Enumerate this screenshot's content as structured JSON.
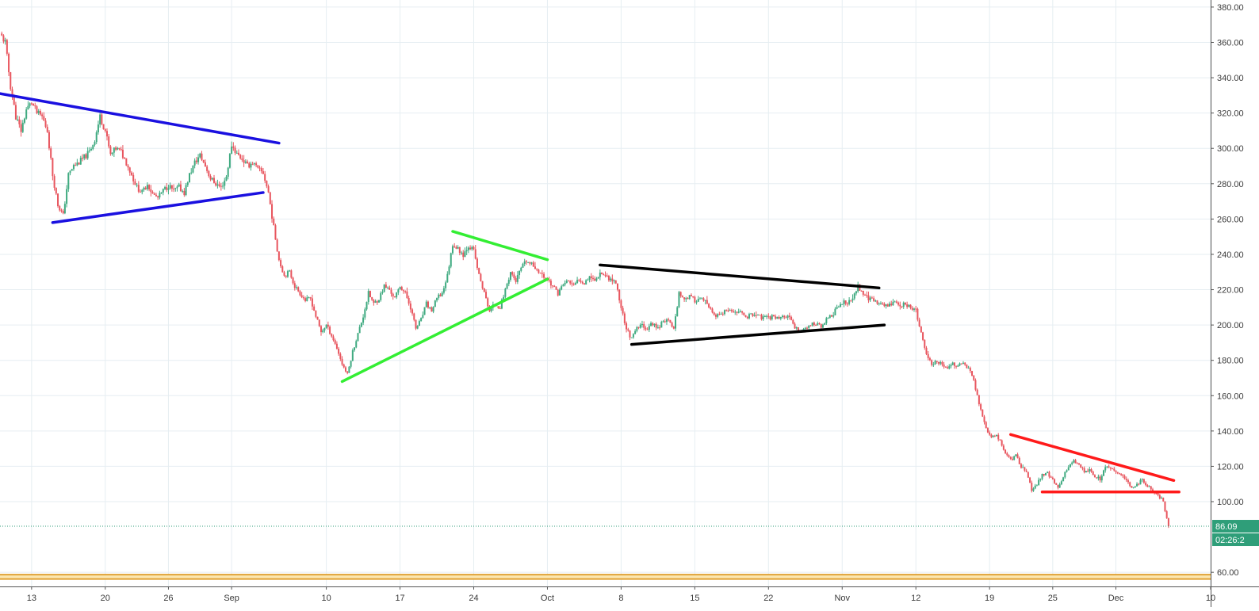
{
  "chart_data": {
    "type": "candlestick",
    "ylim": [
      52,
      384
    ],
    "y_ticks": [
      60,
      100,
      120,
      140,
      160,
      180,
      200,
      220,
      240,
      260,
      280,
      300,
      320,
      340,
      360,
      380
    ],
    "y_tick_labels": [
      "60.00",
      "100.00",
      "120.00",
      "140.00",
      "160.00",
      "180.00",
      "200.00",
      "220.00",
      "240.00",
      "260.00",
      "280.00",
      "300.00",
      "320.00",
      "340.00",
      "360.00",
      "380.00"
    ],
    "x_tick_labels": [
      "13",
      "20",
      "26",
      "Sep",
      "10",
      "17",
      "24",
      "Oct",
      "8",
      "15",
      "22",
      "Nov",
      "12",
      "19",
      "25",
      "Dec",
      "10"
    ],
    "x_tick_days": [
      0,
      7,
      13,
      19,
      28,
      35,
      42,
      49,
      56,
      63,
      70,
      77,
      84,
      91,
      97,
      103,
      112
    ],
    "x_day_range": [
      -3,
      112
    ],
    "price_path": [
      [
        -3,
        365
      ],
      [
        -2.5,
        360
      ],
      [
        -2,
        335
      ],
      [
        -1.5,
        318
      ],
      [
        -1,
        310
      ],
      [
        -0.5,
        322
      ],
      [
        0,
        326
      ],
      [
        0.5,
        320
      ],
      [
        1,
        318
      ],
      [
        1.5,
        310
      ],
      [
        2,
        285
      ],
      [
        2.5,
        268
      ],
      [
        3,
        262
      ],
      [
        3.5,
        285
      ],
      [
        4,
        290
      ],
      [
        4.5,
        292
      ],
      [
        5,
        295
      ],
      [
        5.5,
        298
      ],
      [
        6,
        305
      ],
      [
        6.5,
        318
      ],
      [
        7,
        310
      ],
      [
        7.5,
        296
      ],
      [
        8,
        300
      ],
      [
        8.5,
        298
      ],
      [
        9,
        292
      ],
      [
        9.5,
        285
      ],
      [
        10,
        278
      ],
      [
        10.5,
        275
      ],
      [
        11,
        280
      ],
      [
        11.5,
        274
      ],
      [
        12,
        272
      ],
      [
        12.5,
        276
      ],
      [
        13,
        279
      ],
      [
        13.5,
        276
      ],
      [
        14,
        278
      ],
      [
        14.5,
        275
      ],
      [
        15,
        285
      ],
      [
        15.5,
        292
      ],
      [
        16,
        296
      ],
      [
        16.5,
        290
      ],
      [
        17,
        283
      ],
      [
        17.5,
        280
      ],
      [
        18,
        278
      ],
      [
        18.5,
        284
      ],
      [
        19,
        302
      ],
      [
        19.5,
        297
      ],
      [
        20,
        294
      ],
      [
        20.5,
        290
      ],
      [
        21,
        292
      ],
      [
        21.5,
        288
      ],
      [
        22,
        286
      ],
      [
        22.5,
        275
      ],
      [
        23,
        255
      ],
      [
        23.5,
        237
      ],
      [
        24,
        228
      ],
      [
        24.5,
        230
      ],
      [
        25,
        222
      ],
      [
        25.5,
        218
      ],
      [
        26,
        214
      ],
      [
        26.5,
        215
      ],
      [
        27,
        205
      ],
      [
        27.5,
        196
      ],
      [
        28,
        200
      ],
      [
        28.5,
        194
      ],
      [
        29,
        187
      ],
      [
        29.5,
        178
      ],
      [
        30,
        172
      ],
      [
        30.5,
        185
      ],
      [
        31,
        195
      ],
      [
        31.5,
        205
      ],
      [
        32,
        218
      ],
      [
        32.5,
        212
      ],
      [
        33,
        215
      ],
      [
        33.5,
        222
      ],
      [
        34,
        220
      ],
      [
        34.5,
        215
      ],
      [
        35,
        222
      ],
      [
        35.5,
        218
      ],
      [
        36,
        210
      ],
      [
        36.5,
        198
      ],
      [
        37,
        203
      ],
      [
        37.5,
        212
      ],
      [
        38,
        208
      ],
      [
        38.5,
        215
      ],
      [
        39,
        218
      ],
      [
        39.5,
        228
      ],
      [
        40,
        246
      ],
      [
        40.5,
        243
      ],
      [
        41,
        240
      ],
      [
        41.5,
        245
      ],
      [
        42,
        242
      ],
      [
        42.5,
        228
      ],
      [
        43,
        218
      ],
      [
        43.5,
        208
      ],
      [
        44,
        212
      ],
      [
        44.5,
        210
      ],
      [
        45,
        220
      ],
      [
        45.5,
        230
      ],
      [
        46,
        225
      ],
      [
        46.5,
        232
      ],
      [
        47,
        236
      ],
      [
        47.5,
        234
      ],
      [
        48,
        232
      ],
      [
        48.5,
        228
      ],
      [
        49,
        226
      ],
      [
        49.5,
        222
      ],
      [
        50,
        218
      ],
      [
        50.5,
        223
      ],
      [
        51,
        225
      ],
      [
        51.5,
        222
      ],
      [
        52,
        226
      ],
      [
        52.5,
        224
      ],
      [
        53,
        228
      ],
      [
        53.5,
        225
      ],
      [
        54,
        230
      ],
      [
        54.5,
        228
      ],
      [
        55,
        226
      ],
      [
        55.5,
        224
      ],
      [
        56,
        210
      ],
      [
        56.5,
        198
      ],
      [
        57,
        192
      ],
      [
        57.5,
        198
      ],
      [
        58,
        200
      ],
      [
        58.5,
        198
      ],
      [
        59,
        201
      ],
      [
        59.5,
        198
      ],
      [
        60,
        203
      ],
      [
        60.5,
        202
      ],
      [
        61,
        198
      ],
      [
        61.5,
        218
      ],
      [
        62,
        215
      ],
      [
        62.5,
        216
      ],
      [
        63,
        214
      ],
      [
        63.5,
        215
      ],
      [
        64,
        213
      ],
      [
        64.5,
        208
      ],
      [
        65,
        205
      ],
      [
        65.5,
        206
      ],
      [
        66,
        208
      ],
      [
        66.5,
        207
      ],
      [
        67,
        208
      ],
      [
        67.5,
        206
      ],
      [
        68,
        205
      ],
      [
        68.5,
        206
      ],
      [
        69,
        205
      ],
      [
        69.5,
        204
      ],
      [
        70,
        204
      ],
      [
        70.5,
        205
      ],
      [
        71,
        204
      ],
      [
        71.5,
        205
      ],
      [
        72,
        204
      ],
      [
        72.5,
        198
      ],
      [
        73,
        197
      ],
      [
        73.5,
        198
      ],
      [
        74,
        200
      ],
      [
        74.5,
        201
      ],
      [
        75,
        199
      ],
      [
        75.5,
        203
      ],
      [
        76,
        205
      ],
      [
        76.5,
        210
      ],
      [
        77,
        213
      ],
      [
        77.5,
        212
      ],
      [
        78,
        215
      ],
      [
        78.5,
        222
      ],
      [
        79,
        218
      ],
      [
        79.5,
        215
      ],
      [
        80,
        214
      ],
      [
        80.5,
        212
      ],
      [
        81,
        211
      ],
      [
        81.5,
        212
      ],
      [
        82,
        213
      ],
      [
        82.5,
        211
      ],
      [
        83,
        212
      ],
      [
        83.5,
        210
      ],
      [
        84,
        208
      ],
      [
        84.5,
        195
      ],
      [
        85,
        183
      ],
      [
        85.5,
        178
      ],
      [
        86,
        180
      ],
      [
        86.5,
        177
      ],
      [
        87,
        176
      ],
      [
        87.5,
        178
      ],
      [
        88,
        177
      ],
      [
        88.5,
        178
      ],
      [
        89,
        176
      ],
      [
        89.5,
        168
      ],
      [
        90,
        156
      ],
      [
        90.5,
        145
      ],
      [
        91,
        137
      ],
      [
        91.5,
        138
      ],
      [
        92,
        135
      ],
      [
        92.5,
        127
      ],
      [
        93,
        124
      ],
      [
        93.5,
        126
      ],
      [
        94,
        120
      ],
      [
        94.5,
        116
      ],
      [
        95,
        107
      ],
      [
        95.5,
        110
      ],
      [
        96,
        115
      ],
      [
        96.5,
        116
      ],
      [
        97,
        112
      ],
      [
        97.5,
        108
      ],
      [
        98,
        114
      ],
      [
        98.5,
        120
      ],
      [
        99,
        123
      ],
      [
        99.5,
        121
      ],
      [
        100,
        117
      ],
      [
        100.5,
        118
      ],
      [
        101,
        114
      ],
      [
        101.5,
        113
      ],
      [
        102,
        120
      ],
      [
        102.5,
        118
      ],
      [
        103,
        117
      ],
      [
        103.5,
        115
      ],
      [
        104,
        113
      ],
      [
        104.5,
        108
      ],
      [
        105,
        110
      ],
      [
        105.5,
        112
      ],
      [
        106,
        109
      ],
      [
        106.5,
        106
      ],
      [
        107,
        104
      ],
      [
        107.5,
        100
      ],
      [
        108,
        86.09
      ]
    ],
    "trend_lines": [
      {
        "color": "#1a10e0",
        "points": [
          [
            -3,
            331
          ],
          [
            23.5,
            303
          ]
        ]
      },
      {
        "color": "#1a10e0",
        "points": [
          [
            2,
            258
          ],
          [
            22,
            275
          ]
        ]
      },
      {
        "color": "#33ee33",
        "points": [
          [
            40,
            253
          ],
          [
            49,
            237
          ]
        ]
      },
      {
        "color": "#33ee33",
        "points": [
          [
            29.5,
            168
          ],
          [
            49,
            226
          ]
        ]
      },
      {
        "color": "#000000",
        "points": [
          [
            54,
            234
          ],
          [
            80.5,
            221
          ]
        ]
      },
      {
        "color": "#000000",
        "points": [
          [
            57,
            189
          ],
          [
            81,
            200
          ]
        ]
      },
      {
        "color": "#ff1a1a",
        "points": [
          [
            93,
            138
          ],
          [
            108.5,
            112
          ]
        ]
      },
      {
        "color": "#ff1a1a",
        "points": [
          [
            96,
            105.5
          ],
          [
            109,
            105.5
          ]
        ]
      }
    ],
    "current_price": 86.09,
    "current_price_label": "86.09",
    "countdown_label": "02:26:2",
    "colors": {
      "up": "#3faa80",
      "down": "#e8555e",
      "grid": "#e6eef2",
      "price_tag": "#2f9e79"
    },
    "grid": true
  }
}
